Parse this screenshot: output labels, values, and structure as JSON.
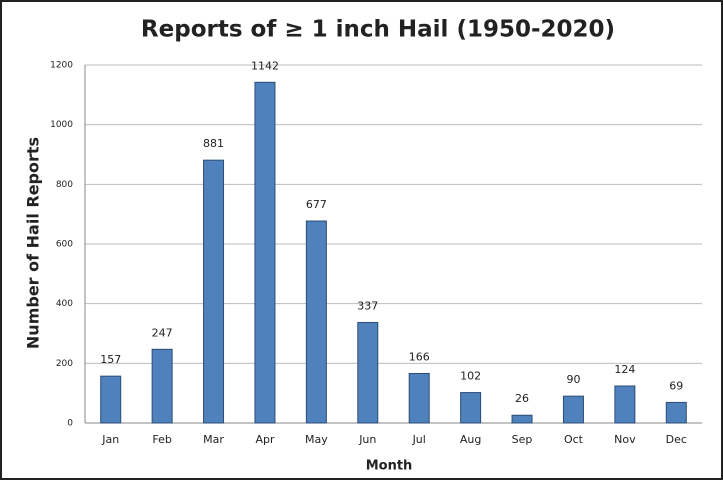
{
  "chart_data": {
    "type": "bar",
    "title": "Reports of ≥ 1 inch Hail (1950-2020)",
    "x_label": "Month",
    "y_label": "Number of Hail Reports",
    "categories": [
      "Jan",
      "Feb",
      "Mar",
      "Apr",
      "May",
      "Jun",
      "Jul",
      "Aug",
      "Sep",
      "Oct",
      "Nov",
      "Dec"
    ],
    "values": [
      157,
      247,
      881,
      1142,
      677,
      337,
      166,
      102,
      26,
      90,
      124,
      69
    ],
    "color": "#4f81bd",
    "ylim": [
      0,
      1200
    ],
    "yticks": [
      0,
      200,
      400,
      600,
      800,
      1000,
      1200
    ],
    "grid": true
  }
}
